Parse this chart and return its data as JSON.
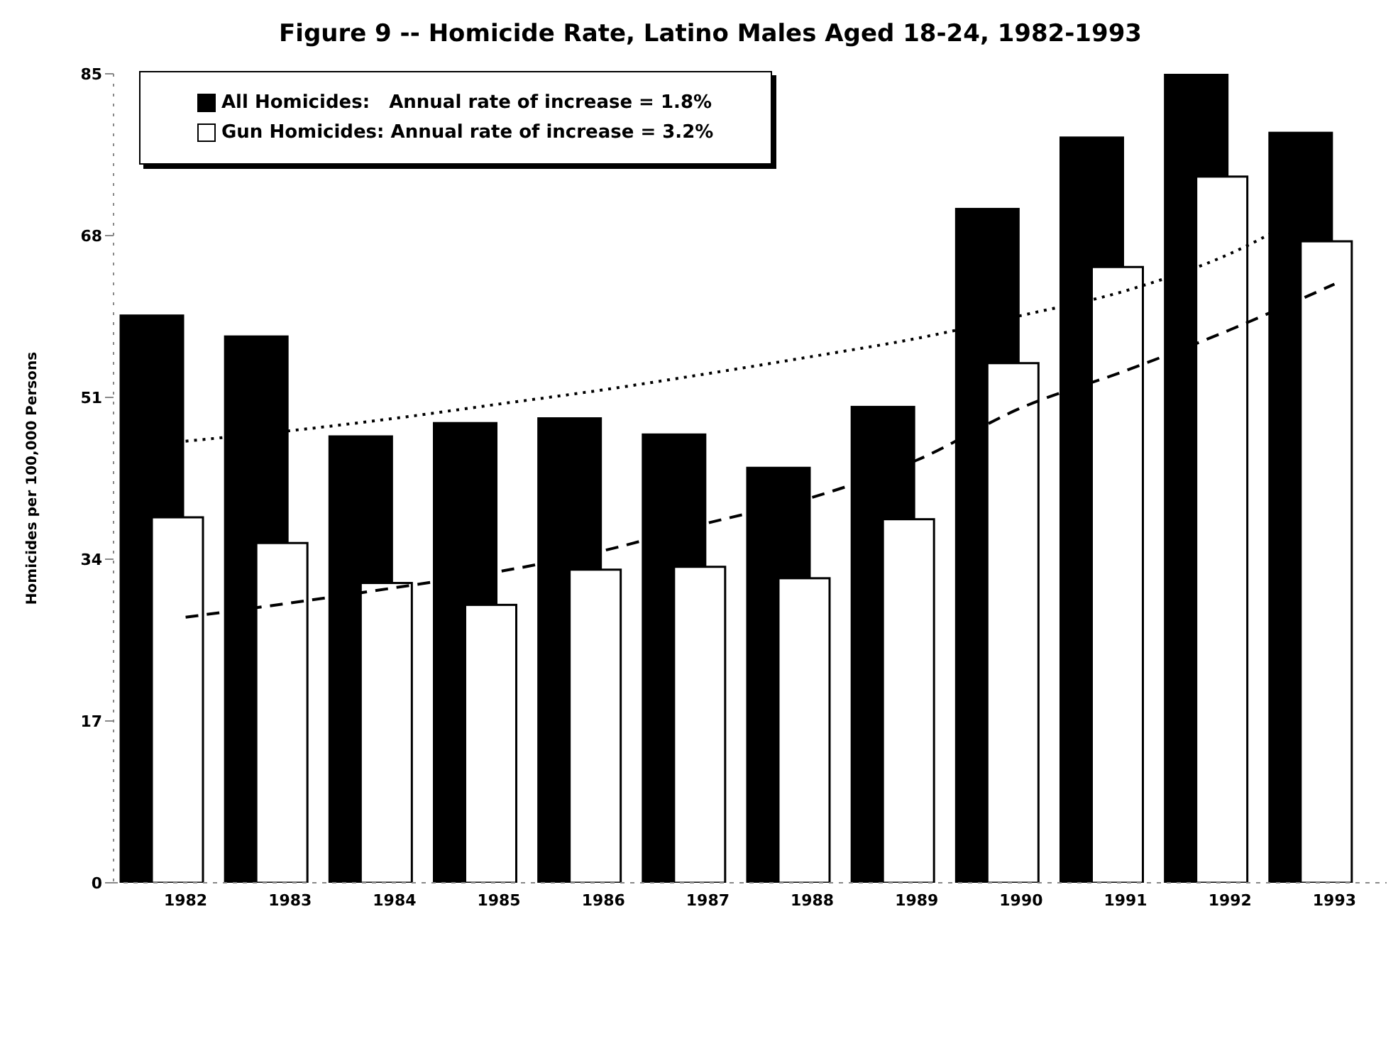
{
  "chart_data": {
    "type": "bar",
    "title": "Figure 9 -- Homicide Rate, Latino Males Aged 18-24, 1982-1993",
    "ylabel": "Homicides per 100,000 Persons",
    "categories": [
      "1982",
      "1983",
      "1984",
      "1985",
      "1986",
      "1987",
      "1988",
      "1989",
      "1990",
      "1991",
      "1992",
      "1993"
    ],
    "series": [
      {
        "name": "All Homicides:   Annual rate of increase = 1.8%",
        "color": "#000000",
        "values": [
          59.6,
          57.4,
          46.9,
          48.3,
          48.8,
          47.1,
          43.6,
          50.0,
          70.8,
          78.3,
          84.9,
          78.8
        ]
      },
      {
        "name": "Gun Homicides: Annual rate of increase = 3.2%",
        "color": "#ffffff",
        "values": [
          38.4,
          35.7,
          31.5,
          29.2,
          32.9,
          33.2,
          32.0,
          38.2,
          54.6,
          64.7,
          74.2,
          67.4
        ]
      },
      {
        "type": "line",
        "line_style": "dotted",
        "color": "#000000",
        "values": [
          46.4,
          47.5,
          48.8,
          50.3,
          51.8,
          53.5,
          55.3,
          57.2,
          59.6,
          62.2,
          66.1,
          72.0
        ]
      },
      {
        "type": "line",
        "line_style": "dashed",
        "color": "#000000",
        "values": [
          27.9,
          29.4,
          31.0,
          32.7,
          34.9,
          37.8,
          40.5,
          44.4,
          49.9,
          53.8,
          58.1,
          62.9
        ]
      }
    ],
    "ylim": [
      0,
      85
    ],
    "yticks": [
      0,
      17,
      34,
      51,
      68,
      85
    ],
    "grid": false,
    "legend": "top left",
    "marker": "none"
  }
}
